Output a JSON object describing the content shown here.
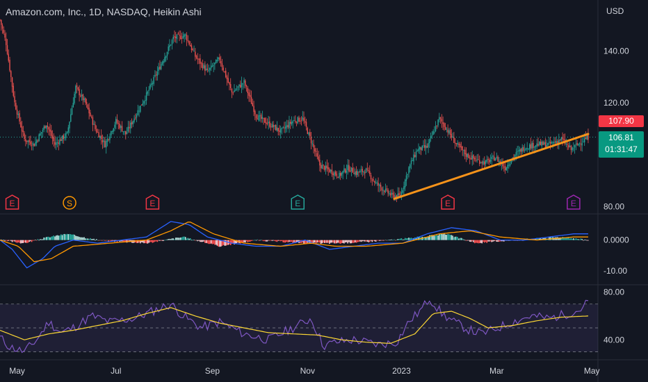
{
  "header": {
    "symbol_title": "Amazon.com, Inc., 1D, NASDAQ, Heikin Ashi",
    "currency": "USD"
  },
  "price_axis": {
    "ticks": [
      "140.00",
      "120.00",
      "80.00"
    ]
  },
  "macd_axis": {
    "ticks": [
      "0.0000",
      "-10.00"
    ]
  },
  "rsi_axis": {
    "ticks": [
      "80.00",
      "40.00"
    ]
  },
  "x_axis": {
    "ticks": [
      "May",
      "Jul",
      "Sep",
      "Nov",
      "2023",
      "Mar",
      "May"
    ]
  },
  "price_labels": {
    "prev_close": "107.90",
    "last": "106.81",
    "countdown": "01:31:47"
  },
  "events": [
    {
      "letter": "E",
      "kind": "earnings"
    },
    {
      "letter": "S",
      "kind": "split"
    },
    {
      "letter": "E",
      "kind": "earnings"
    },
    {
      "letter": "E",
      "kind": "earnings"
    },
    {
      "letter": "E",
      "kind": "earnings"
    },
    {
      "letter": "E",
      "kind": "earnings"
    }
  ],
  "colors": {
    "bg": "#131722",
    "up": "#26a69a",
    "down": "#ef5350",
    "trendline": "#f7931a",
    "macd": "#2962ff",
    "signal": "#ff9800",
    "rsi": "#7e57c2",
    "rsi_ma": "#fdd835"
  },
  "chart_data": [
    {
      "type": "candlestick",
      "style": "Heikin Ashi",
      "ylim": [
        78,
        157
      ],
      "close_path": [
        [
          0,
          152
        ],
        [
          5,
          143
        ],
        [
          12,
          120
        ],
        [
          20,
          106
        ],
        [
          28,
          104
        ],
        [
          38,
          112
        ],
        [
          45,
          104
        ],
        [
          55,
          108
        ],
        [
          62,
          126
        ],
        [
          70,
          120
        ],
        [
          78,
          110
        ],
        [
          86,
          104
        ],
        [
          95,
          113
        ],
        [
          103,
          108
        ],
        [
          112,
          116
        ],
        [
          120,
          123
        ],
        [
          130,
          133
        ],
        [
          142,
          145
        ],
        [
          152,
          146
        ],
        [
          160,
          138
        ],
        [
          170,
          132
        ],
        [
          180,
          137
        ],
        [
          190,
          124
        ],
        [
          200,
          128
        ],
        [
          210,
          115
        ],
        [
          220,
          112
        ],
        [
          230,
          109
        ],
        [
          240,
          113
        ],
        [
          248,
          114
        ],
        [
          256,
          104
        ],
        [
          262,
          96
        ],
        [
          270,
          94
        ],
        [
          278,
          92
        ],
        [
          285,
          95
        ],
        [
          292,
          93
        ],
        [
          300,
          94
        ],
        [
          308,
          89
        ],
        [
          316,
          86
        ],
        [
          322,
          84
        ],
        [
          328,
          84
        ],
        [
          335,
          95
        ],
        [
          342,
          102
        ],
        [
          350,
          103
        ],
        [
          360,
          114
        ],
        [
          366,
          110
        ],
        [
          374,
          104
        ],
        [
          382,
          100
        ],
        [
          390,
          98
        ],
        [
          398,
          97
        ],
        [
          406,
          99
        ],
        [
          414,
          95
        ],
        [
          422,
          100
        ],
        [
          430,
          103
        ],
        [
          440,
          104
        ],
        [
          450,
          104
        ],
        [
          460,
          106
        ],
        [
          468,
          102
        ],
        [
          476,
          105
        ],
        [
          482,
          106.81
        ]
      ],
      "trendline": [
        [
          323,
          83
        ],
        [
          482,
          108
        ]
      ],
      "prev_close": 107.9,
      "last": 106.81
    },
    {
      "type": "line",
      "name": "MACD",
      "ylim": [
        -14,
        8
      ],
      "series": [
        {
          "role": "macd",
          "values": [
            [
              0,
              0
            ],
            [
              10,
              -3
            ],
            [
              22,
              -9
            ],
            [
              35,
              -6
            ],
            [
              45,
              -2
            ],
            [
              60,
              0
            ],
            [
              80,
              -1
            ],
            [
              100,
              0
            ],
            [
              120,
              1
            ],
            [
              140,
              6
            ],
            [
              155,
              5
            ],
            [
              170,
              1
            ],
            [
              190,
              -1
            ],
            [
              210,
              -2
            ],
            [
              230,
              -2
            ],
            [
              250,
              0
            ],
            [
              270,
              -3
            ],
            [
              290,
              -2
            ],
            [
              310,
              -1
            ],
            [
              330,
              -1
            ],
            [
              350,
              2
            ],
            [
              370,
              4
            ],
            [
              390,
              3
            ],
            [
              410,
              0
            ],
            [
              430,
              0
            ],
            [
              450,
              1
            ],
            [
              470,
              2
            ],
            [
              482,
              2
            ]
          ]
        },
        {
          "role": "signal",
          "values": [
            [
              0,
              0
            ],
            [
              15,
              -2
            ],
            [
              28,
              -7
            ],
            [
              42,
              -6
            ],
            [
              60,
              -2
            ],
            [
              90,
              -1
            ],
            [
              120,
              0
            ],
            [
              140,
              3
            ],
            [
              155,
              6
            ],
            [
              175,
              2
            ],
            [
              200,
              -1
            ],
            [
              230,
              -2
            ],
            [
              255,
              -1
            ],
            [
              275,
              -2
            ],
            [
              300,
              -2
            ],
            [
              330,
              -1
            ],
            [
              360,
              2
            ],
            [
              385,
              3
            ],
            [
              410,
              1
            ],
            [
              440,
              0
            ],
            [
              470,
              1
            ],
            [
              482,
              1
            ]
          ]
        }
      ],
      "histogram": [
        [
          0,
          0
        ],
        [
          20,
          -1
        ],
        [
          40,
          1
        ],
        [
          55,
          2
        ],
        [
          80,
          0
        ],
        [
          120,
          -1
        ],
        [
          150,
          1
        ],
        [
          180,
          -2
        ],
        [
          210,
          0
        ],
        [
          250,
          -1
        ],
        [
          280,
          -1
        ],
        [
          320,
          0
        ],
        [
          345,
          1
        ],
        [
          365,
          2
        ],
        [
          390,
          -1
        ],
        [
          420,
          0
        ],
        [
          460,
          1
        ],
        [
          482,
          0
        ]
      ]
    },
    {
      "type": "line",
      "name": "RSI",
      "ylim": [
        25,
        85
      ],
      "band": [
        30,
        70
      ],
      "midline": 50,
      "series": [
        {
          "role": "rsi",
          "values": [
            [
              0,
              42
            ],
            [
              8,
              34
            ],
            [
              20,
              30
            ],
            [
              30,
              40
            ],
            [
              40,
              55
            ],
            [
              50,
              46
            ],
            [
              60,
              50
            ],
            [
              75,
              60
            ],
            [
              90,
              55
            ],
            [
              110,
              58
            ],
            [
              130,
              66
            ],
            [
              140,
              70
            ],
            [
              150,
              60
            ],
            [
              165,
              50
            ],
            [
              180,
              55
            ],
            [
              200,
              45
            ],
            [
              220,
              40
            ],
            [
              240,
              50
            ],
            [
              255,
              58
            ],
            [
              265,
              35
            ],
            [
              275,
              38
            ],
            [
              290,
              40
            ],
            [
              310,
              36
            ],
            [
              325,
              38
            ],
            [
              335,
              55
            ],
            [
              345,
              65
            ],
            [
              352,
              75
            ],
            [
              362,
              62
            ],
            [
              372,
              55
            ],
            [
              385,
              48
            ],
            [
              395,
              45
            ],
            [
              408,
              50
            ],
            [
              420,
              55
            ],
            [
              435,
              60
            ],
            [
              450,
              58
            ],
            [
              465,
              62
            ],
            [
              475,
              65
            ],
            [
              482,
              72
            ]
          ]
        },
        {
          "role": "rsi_ma",
          "values": [
            [
              0,
              48
            ],
            [
              20,
              40
            ],
            [
              40,
              45
            ],
            [
              60,
              48
            ],
            [
              80,
              52
            ],
            [
              100,
              56
            ],
            [
              120,
              62
            ],
            [
              140,
              67
            ],
            [
              160,
              60
            ],
            [
              180,
              54
            ],
            [
              200,
              50
            ],
            [
              220,
              46
            ],
            [
              240,
              45
            ],
            [
              260,
              44
            ],
            [
              280,
              40
            ],
            [
              300,
              38
            ],
            [
              320,
              37
            ],
            [
              340,
              45
            ],
            [
              355,
              62
            ],
            [
              370,
              64
            ],
            [
              385,
              58
            ],
            [
              400,
              50
            ],
            [
              420,
              52
            ],
            [
              440,
              56
            ],
            [
              460,
              59
            ],
            [
              482,
              60
            ]
          ]
        }
      ]
    }
  ]
}
